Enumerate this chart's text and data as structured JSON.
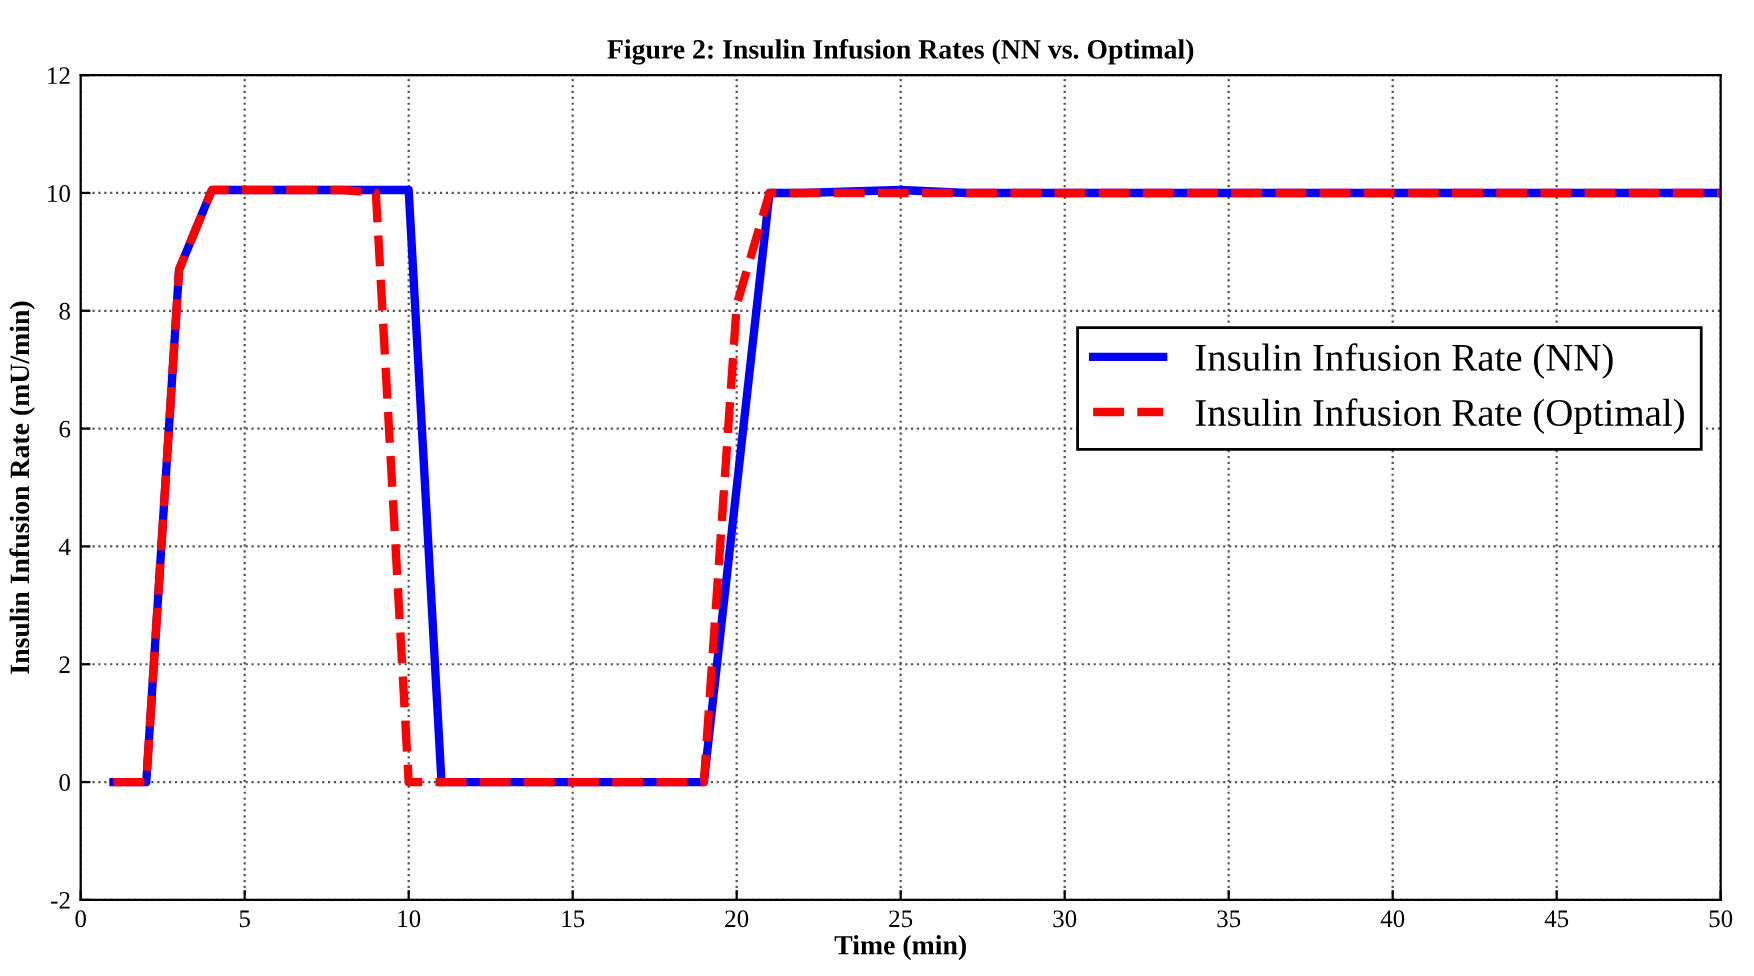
{
  "chart_data": {
    "type": "line",
    "title": "Figure 2: Insulin Infusion Rates (NN vs. Optimal)",
    "xlabel": "Time (min)",
    "ylabel": "Insulin Infusion Rate (mU/min)",
    "series": [
      {
        "name": "Insulin Infusion Rate (NN)",
        "color": "#0000ff",
        "line_style": "solid",
        "x": [
          1,
          2,
          3,
          4,
          5,
          9,
          10,
          11,
          19,
          20,
          21,
          22,
          25,
          27,
          30,
          50
        ],
        "values": [
          0,
          0,
          8.7,
          10.05,
          10.05,
          10.05,
          10.05,
          0,
          0,
          5,
          10,
          10,
          10.05,
          10,
          10,
          10
        ]
      },
      {
        "name": "Insulin Infusion Rate (Optimal)",
        "color": "#ff0000",
        "line_style": "dashed",
        "x": [
          1,
          2,
          3,
          4,
          5,
          8,
          9,
          10,
          11,
          19,
          20,
          21,
          22,
          25,
          30,
          50
        ],
        "values": [
          0,
          0,
          8.7,
          10.05,
          10.05,
          10.05,
          10,
          0,
          0,
          0,
          8.1,
          10,
          10,
          10,
          10,
          10
        ]
      }
    ],
    "xlim": [
      0,
      50
    ],
    "ylim": [
      -2,
      12
    ],
    "xticks": [
      0,
      5,
      10,
      15,
      20,
      25,
      30,
      35,
      40,
      45,
      50
    ],
    "yticks": [
      -2,
      0,
      2,
      4,
      6,
      8,
      10,
      12
    ],
    "grid": true,
    "legend": "right"
  }
}
